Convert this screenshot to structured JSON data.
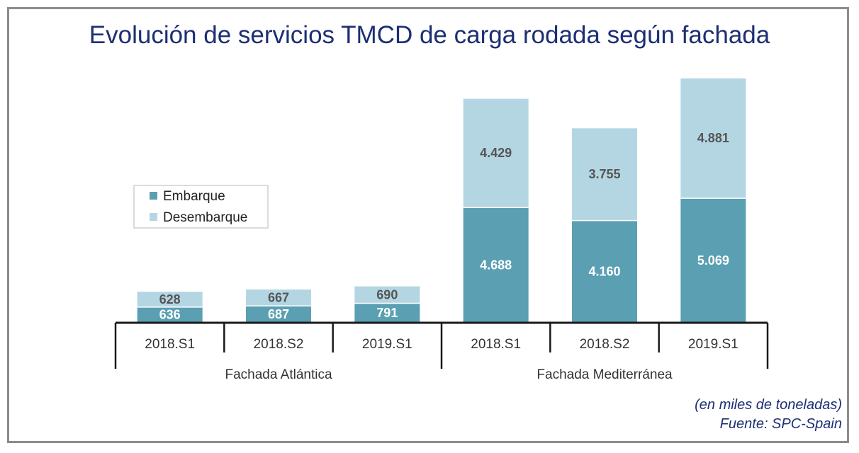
{
  "colors": {
    "embarque": "#5b9fb2",
    "desembarque": "#b4d6e3",
    "title": "#1c2f73",
    "frame": "#8c8c8c",
    "axis": "#1a1a1a",
    "label_light": "#ffffff",
    "label_dark": "#555555"
  },
  "chart_data": {
    "type": "bar",
    "stacked": true,
    "title": "Evolución de servicios TMCD de carga rodada según fachada",
    "groups": [
      {
        "name": "Fachada Atlántica",
        "categories": [
          "2018.S1",
          "2018.S2",
          "2019.S1"
        ]
      },
      {
        "name": "Fachada Mediterránea",
        "categories": [
          "2018.S1",
          "2018.S2",
          "2019.S1"
        ]
      }
    ],
    "categories": [
      "2018.S1",
      "2018.S2",
      "2019.S1",
      "2018.S1",
      "2018.S2",
      "2019.S1"
    ],
    "series": [
      {
        "name": "Embarque",
        "values": [
          636,
          687,
          791,
          4688,
          4160,
          5069
        ],
        "labels": [
          "636",
          "687",
          "791",
          "4.688",
          "4.160",
          "5.069"
        ]
      },
      {
        "name": "Desembarque",
        "values": [
          628,
          667,
          690,
          4429,
          3755,
          4881
        ],
        "labels": [
          "628",
          "667",
          "690",
          "4.429",
          "3.755",
          "4.881"
        ]
      }
    ],
    "ylim": [
      0,
      10200
    ],
    "legend_position": "left-middle",
    "grid": false
  },
  "footer": {
    "unit_note": "(en miles de toneladas)",
    "source": "Fuente: SPC-Spain"
  }
}
